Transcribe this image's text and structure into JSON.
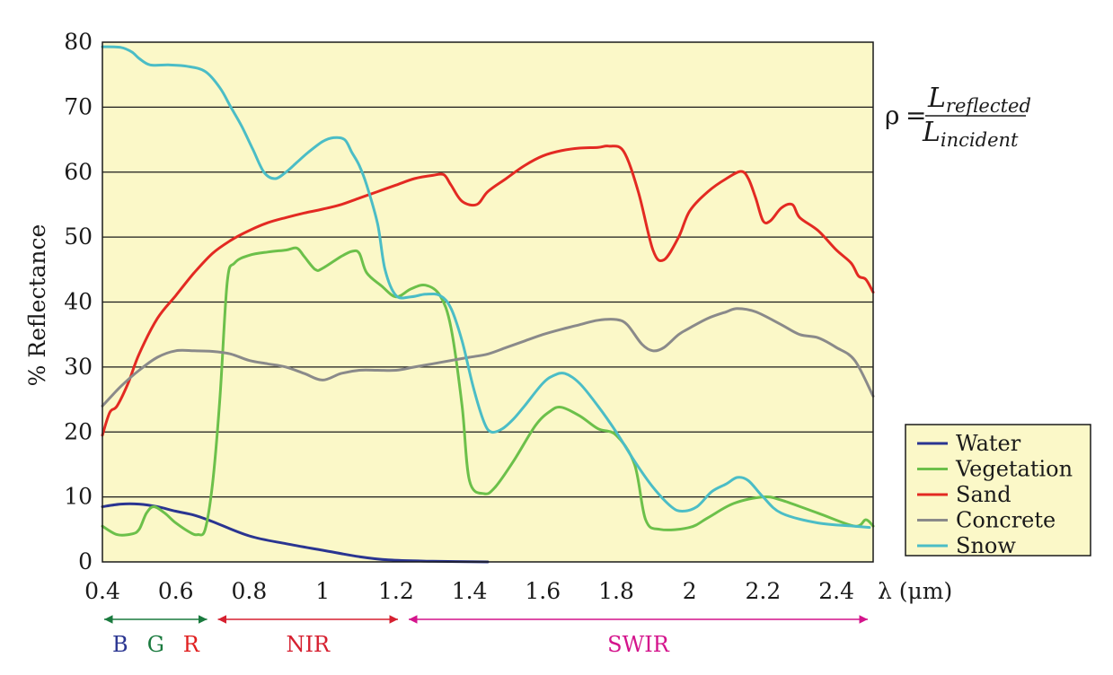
{
  "chart_data": {
    "type": "line",
    "ylabel": "% Reflectance",
    "xunit_label": "λ (μm)",
    "xlim": [
      0.4,
      2.5
    ],
    "ylim": [
      0,
      80
    ],
    "x_ticks": [
      "0.4",
      "0.6",
      "0.8",
      "1",
      "1.2",
      "1.4",
      "1.6",
      "1.8",
      "2",
      "2.2",
      "2.4"
    ],
    "x_tick_values": [
      0.4,
      0.6,
      0.8,
      1.0,
      1.2,
      1.4,
      1.6,
      1.8,
      2.0,
      2.2,
      2.4
    ],
    "y_ticks": [
      "0",
      "10",
      "20",
      "30",
      "40",
      "50",
      "60",
      "70",
      "80"
    ],
    "y_tick_values": [
      0,
      10,
      20,
      30,
      40,
      50,
      60,
      70,
      80
    ],
    "grid": "horizontal",
    "legend_position": "bottom-right",
    "colors": {
      "plot_background": "#fbf8c8",
      "legend_background": "#fbf8c8",
      "grid": "#1a1a1a"
    },
    "formula": {
      "symbol": "ρ",
      "equals": "=",
      "numerator": "L",
      "numerator_sub": "reflected",
      "denominator": "L",
      "denominator_sub": "incident"
    },
    "bands": [
      {
        "labels": [
          {
            "text": "B",
            "color": "#2a3591"
          },
          {
            "text": "G",
            "color": "#1a7a3e"
          },
          {
            "text": "R",
            "color": "#e02020"
          }
        ],
        "x_range": [
          0.4,
          0.7
        ],
        "arrow_color": "#1a7a3e"
      },
      {
        "labels": [
          {
            "text": "NIR",
            "color": "#d62030"
          }
        ],
        "x_range": [
          0.7,
          1.22
        ],
        "arrow_color": "#d62030"
      },
      {
        "labels": [
          {
            "text": "SWIR",
            "color": "#d4148c"
          }
        ],
        "x_range": [
          1.22,
          2.5
        ],
        "arrow_color": "#d4148c"
      }
    ],
    "series": [
      {
        "name": "Water",
        "color": "#2a3591",
        "points": [
          [
            0.4,
            8.5
          ],
          [
            0.45,
            8.9
          ],
          [
            0.5,
            8.9
          ],
          [
            0.55,
            8.5
          ],
          [
            0.6,
            7.8
          ],
          [
            0.65,
            7.2
          ],
          [
            0.7,
            6.2
          ],
          [
            0.8,
            4.0
          ],
          [
            0.9,
            2.8
          ],
          [
            1.0,
            1.8
          ],
          [
            1.1,
            0.8
          ],
          [
            1.18,
            0.3
          ],
          [
            1.3,
            0.1
          ],
          [
            1.45,
            0.0
          ]
        ]
      },
      {
        "name": "Vegetation",
        "color": "#6cc04a",
        "points": [
          [
            0.4,
            5.5
          ],
          [
            0.44,
            4.2
          ],
          [
            0.48,
            4.3
          ],
          [
            0.5,
            5.0
          ],
          [
            0.52,
            7.5
          ],
          [
            0.54,
            8.5
          ],
          [
            0.57,
            7.5
          ],
          [
            0.6,
            6.0
          ],
          [
            0.64,
            4.5
          ],
          [
            0.66,
            4.2
          ],
          [
            0.68,
            5.0
          ],
          [
            0.7,
            12
          ],
          [
            0.72,
            25
          ],
          [
            0.74,
            43
          ],
          [
            0.76,
            46
          ],
          [
            0.8,
            47.2
          ],
          [
            0.85,
            47.7
          ],
          [
            0.9,
            48.0
          ],
          [
            0.93,
            48.3
          ],
          [
            0.95,
            47.0
          ],
          [
            0.98,
            45.0
          ],
          [
            1.0,
            45.2
          ],
          [
            1.05,
            47.0
          ],
          [
            1.08,
            47.8
          ],
          [
            1.1,
            47.5
          ],
          [
            1.12,
            44.5
          ],
          [
            1.16,
            42.5
          ],
          [
            1.2,
            40.8
          ],
          [
            1.24,
            42.0
          ],
          [
            1.28,
            42.6
          ],
          [
            1.32,
            41.0
          ],
          [
            1.35,
            36.0
          ],
          [
            1.38,
            24.0
          ],
          [
            1.4,
            12.5
          ],
          [
            1.44,
            10.5
          ],
          [
            1.47,
            11.5
          ],
          [
            1.52,
            15.5
          ],
          [
            1.58,
            21.0
          ],
          [
            1.62,
            23.2
          ],
          [
            1.65,
            23.8
          ],
          [
            1.7,
            22.5
          ],
          [
            1.75,
            20.5
          ],
          [
            1.8,
            19.5
          ],
          [
            1.85,
            15.0
          ],
          [
            1.88,
            6.5
          ],
          [
            1.92,
            5.0
          ],
          [
            2.0,
            5.3
          ],
          [
            2.05,
            6.8
          ],
          [
            2.12,
            9.0
          ],
          [
            2.2,
            10.0
          ],
          [
            2.25,
            9.5
          ],
          [
            2.35,
            7.5
          ],
          [
            2.45,
            5.5
          ],
          [
            2.48,
            6.5
          ],
          [
            2.5,
            5.5
          ]
        ]
      },
      {
        "name": "Sand",
        "color": "#e32a22",
        "points": [
          [
            0.4,
            19.5
          ],
          [
            0.42,
            23.0
          ],
          [
            0.44,
            24.0
          ],
          [
            0.47,
            27.5
          ],
          [
            0.5,
            32.0
          ],
          [
            0.55,
            37.5
          ],
          [
            0.6,
            41.0
          ],
          [
            0.65,
            44.5
          ],
          [
            0.7,
            47.5
          ],
          [
            0.75,
            49.5
          ],
          [
            0.8,
            51.0
          ],
          [
            0.85,
            52.2
          ],
          [
            0.9,
            53.0
          ],
          [
            0.95,
            53.7
          ],
          [
            1.0,
            54.3
          ],
          [
            1.05,
            55.0
          ],
          [
            1.1,
            56.0
          ],
          [
            1.15,
            57.0
          ],
          [
            1.2,
            58.0
          ],
          [
            1.25,
            59.0
          ],
          [
            1.3,
            59.5
          ],
          [
            1.33,
            59.6
          ],
          [
            1.35,
            58.0
          ],
          [
            1.38,
            55.5
          ],
          [
            1.42,
            55.0
          ],
          [
            1.45,
            57.0
          ],
          [
            1.5,
            59.0
          ],
          [
            1.55,
            61.0
          ],
          [
            1.6,
            62.5
          ],
          [
            1.65,
            63.3
          ],
          [
            1.7,
            63.7
          ],
          [
            1.75,
            63.8
          ],
          [
            1.78,
            64.0
          ],
          [
            1.82,
            63.2
          ],
          [
            1.86,
            57.0
          ],
          [
            1.9,
            48.0
          ],
          [
            1.93,
            46.5
          ],
          [
            1.97,
            50.0
          ],
          [
            2.0,
            54.0
          ],
          [
            2.05,
            57.0
          ],
          [
            2.1,
            59.0
          ],
          [
            2.14,
            60.1
          ],
          [
            2.16,
            59.0
          ],
          [
            2.18,
            56.0
          ],
          [
            2.2,
            52.5
          ],
          [
            2.22,
            52.5
          ],
          [
            2.25,
            54.5
          ],
          [
            2.28,
            55.0
          ],
          [
            2.3,
            53.0
          ],
          [
            2.35,
            51.0
          ],
          [
            2.4,
            48.0
          ],
          [
            2.44,
            46.0
          ],
          [
            2.46,
            44.0
          ],
          [
            2.48,
            43.5
          ],
          [
            2.5,
            41.5
          ]
        ]
      },
      {
        "name": "Concrete",
        "color": "#8a8a8a",
        "points": [
          [
            0.4,
            24.0
          ],
          [
            0.45,
            27.0
          ],
          [
            0.5,
            29.5
          ],
          [
            0.55,
            31.5
          ],
          [
            0.6,
            32.5
          ],
          [
            0.65,
            32.5
          ],
          [
            0.7,
            32.4
          ],
          [
            0.75,
            32.0
          ],
          [
            0.8,
            31.0
          ],
          [
            0.85,
            30.5
          ],
          [
            0.9,
            30.0
          ],
          [
            0.95,
            29.0
          ],
          [
            1.0,
            28.0
          ],
          [
            1.05,
            29.0
          ],
          [
            1.1,
            29.5
          ],
          [
            1.15,
            29.5
          ],
          [
            1.2,
            29.5
          ],
          [
            1.25,
            30.0
          ],
          [
            1.3,
            30.5
          ],
          [
            1.35,
            31.0
          ],
          [
            1.4,
            31.5
          ],
          [
            1.45,
            32.0
          ],
          [
            1.5,
            33.0
          ],
          [
            1.55,
            34.0
          ],
          [
            1.6,
            35.0
          ],
          [
            1.65,
            35.8
          ],
          [
            1.7,
            36.5
          ],
          [
            1.75,
            37.2
          ],
          [
            1.8,
            37.3
          ],
          [
            1.83,
            36.5
          ],
          [
            1.87,
            33.5
          ],
          [
            1.9,
            32.5
          ],
          [
            1.93,
            33.0
          ],
          [
            1.97,
            35.0
          ],
          [
            2.0,
            36.0
          ],
          [
            2.05,
            37.5
          ],
          [
            2.1,
            38.5
          ],
          [
            2.13,
            39.0
          ],
          [
            2.18,
            38.5
          ],
          [
            2.25,
            36.5
          ],
          [
            2.3,
            35.0
          ],
          [
            2.35,
            34.5
          ],
          [
            2.4,
            33.0
          ],
          [
            2.45,
            31.0
          ],
          [
            2.5,
            25.5
          ]
        ]
      },
      {
        "name": "Snow",
        "color": "#4bbdc6",
        "points": [
          [
            0.4,
            79.3
          ],
          [
            0.45,
            79.2
          ],
          [
            0.48,
            78.5
          ],
          [
            0.5,
            77.5
          ],
          [
            0.53,
            76.5
          ],
          [
            0.58,
            76.5
          ],
          [
            0.63,
            76.3
          ],
          [
            0.68,
            75.5
          ],
          [
            0.72,
            73.0
          ],
          [
            0.75,
            70.0
          ],
          [
            0.78,
            67.0
          ],
          [
            0.81,
            63.5
          ],
          [
            0.84,
            60.0
          ],
          [
            0.87,
            59.0
          ],
          [
            0.9,
            60.0
          ],
          [
            0.93,
            61.5
          ],
          [
            0.96,
            63.0
          ],
          [
            1.0,
            64.7
          ],
          [
            1.03,
            65.3
          ],
          [
            1.06,
            65.0
          ],
          [
            1.08,
            63.0
          ],
          [
            1.1,
            61.0
          ],
          [
            1.12,
            58.0
          ],
          [
            1.15,
            52.0
          ],
          [
            1.17,
            45.0
          ],
          [
            1.2,
            41.0
          ],
          [
            1.24,
            40.8
          ],
          [
            1.28,
            41.2
          ],
          [
            1.32,
            41.0
          ],
          [
            1.35,
            39.0
          ],
          [
            1.38,
            34.0
          ],
          [
            1.41,
            27.0
          ],
          [
            1.44,
            21.5
          ],
          [
            1.46,
            20.0
          ],
          [
            1.49,
            20.5
          ],
          [
            1.52,
            22.0
          ],
          [
            1.55,
            24.0
          ],
          [
            1.6,
            27.5
          ],
          [
            1.63,
            28.7
          ],
          [
            1.66,
            29.0
          ],
          [
            1.7,
            27.5
          ],
          [
            1.75,
            24.0
          ],
          [
            1.8,
            20.0
          ],
          [
            1.85,
            15.5
          ],
          [
            1.9,
            11.5
          ],
          [
            1.95,
            8.5
          ],
          [
            1.98,
            7.8
          ],
          [
            2.02,
            8.5
          ],
          [
            2.06,
            10.8
          ],
          [
            2.1,
            12.0
          ],
          [
            2.13,
            13.0
          ],
          [
            2.16,
            12.5
          ],
          [
            2.2,
            10.0
          ],
          [
            2.25,
            7.5
          ],
          [
            2.35,
            6.0
          ],
          [
            2.45,
            5.5
          ],
          [
            2.49,
            5.3
          ]
        ]
      }
    ]
  }
}
